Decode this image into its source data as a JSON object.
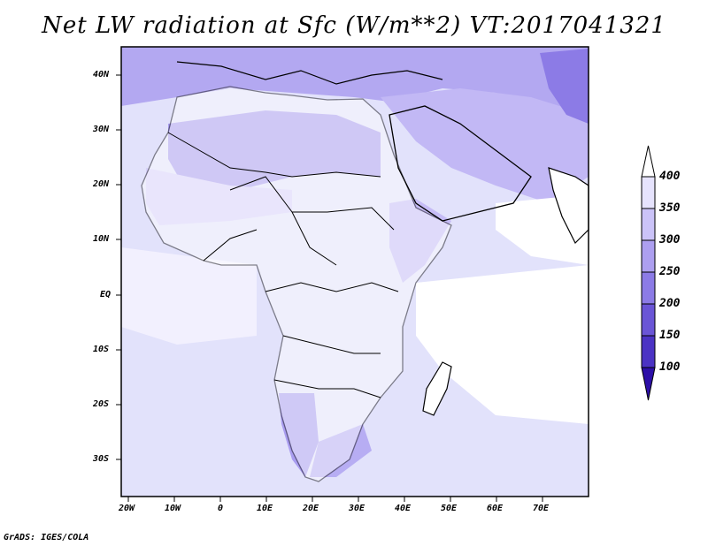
{
  "title": "Net LW radiation at Sfc (W/m**2) VT:2017041321",
  "footer": "GrADS: IGES/COLA",
  "map": {
    "lon_range": [
      -25,
      80
    ],
    "lat_range": [
      -37,
      45
    ],
    "land_color": "#ffffff",
    "ocean_color": "#e2e2fb"
  },
  "axes": {
    "lat_ticks": [
      "40N",
      "30N",
      "20N",
      "10N",
      "EQ",
      "10S",
      "20S",
      "30S"
    ],
    "lon_ticks": [
      "20W",
      "10W",
      "0",
      "10E",
      "20E",
      "30E",
      "40E",
      "50E",
      "60E",
      "70E"
    ]
  },
  "colorbar": {
    "labels": [
      "100",
      "150",
      "200",
      "250",
      "300",
      "350",
      "400"
    ],
    "colors": [
      "#2d0fa8",
      "#4b33c4",
      "#6a55d6",
      "#8c7be6",
      "#ad9ff0",
      "#cbc3f8",
      "#e6e3fd",
      "#ffffff"
    ]
  }
}
